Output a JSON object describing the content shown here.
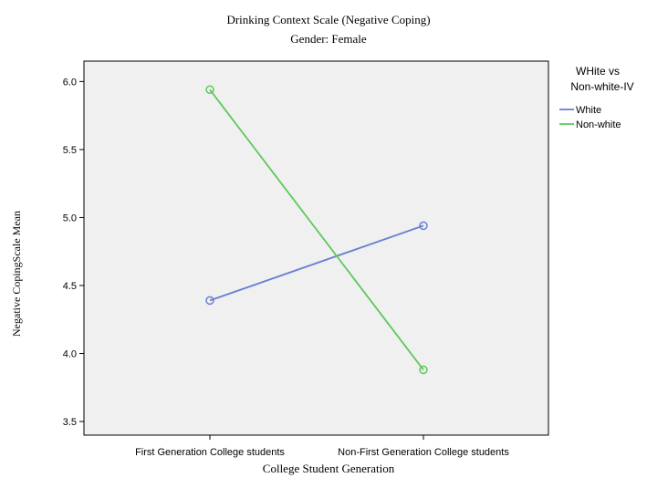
{
  "chart_data": {
    "type": "line",
    "title": "Drinking Context Scale (Negative Coping)",
    "subtitle": "Gender: Female",
    "xlabel": "College Student Generation",
    "ylabel": "Negative CopingScale Mean",
    "categories": [
      "First Generation College students",
      "Non-First Generation College students"
    ],
    "ylim": [
      3.4,
      6.15
    ],
    "yticks": [
      "3.5",
      "4.0",
      "4.5",
      "5.0",
      "5.5",
      "6.0"
    ],
    "grid": false,
    "legend": {
      "title_lines": [
        "WHite vs",
        "Non-white-IV"
      ],
      "placement": "right"
    },
    "series": [
      {
        "name": "White",
        "values": [
          4.39,
          4.94
        ],
        "color": "#6a7fd0"
      },
      {
        "name": "Non-white",
        "values": [
          5.94,
          3.88
        ],
        "color": "#5cc85a"
      }
    ]
  }
}
